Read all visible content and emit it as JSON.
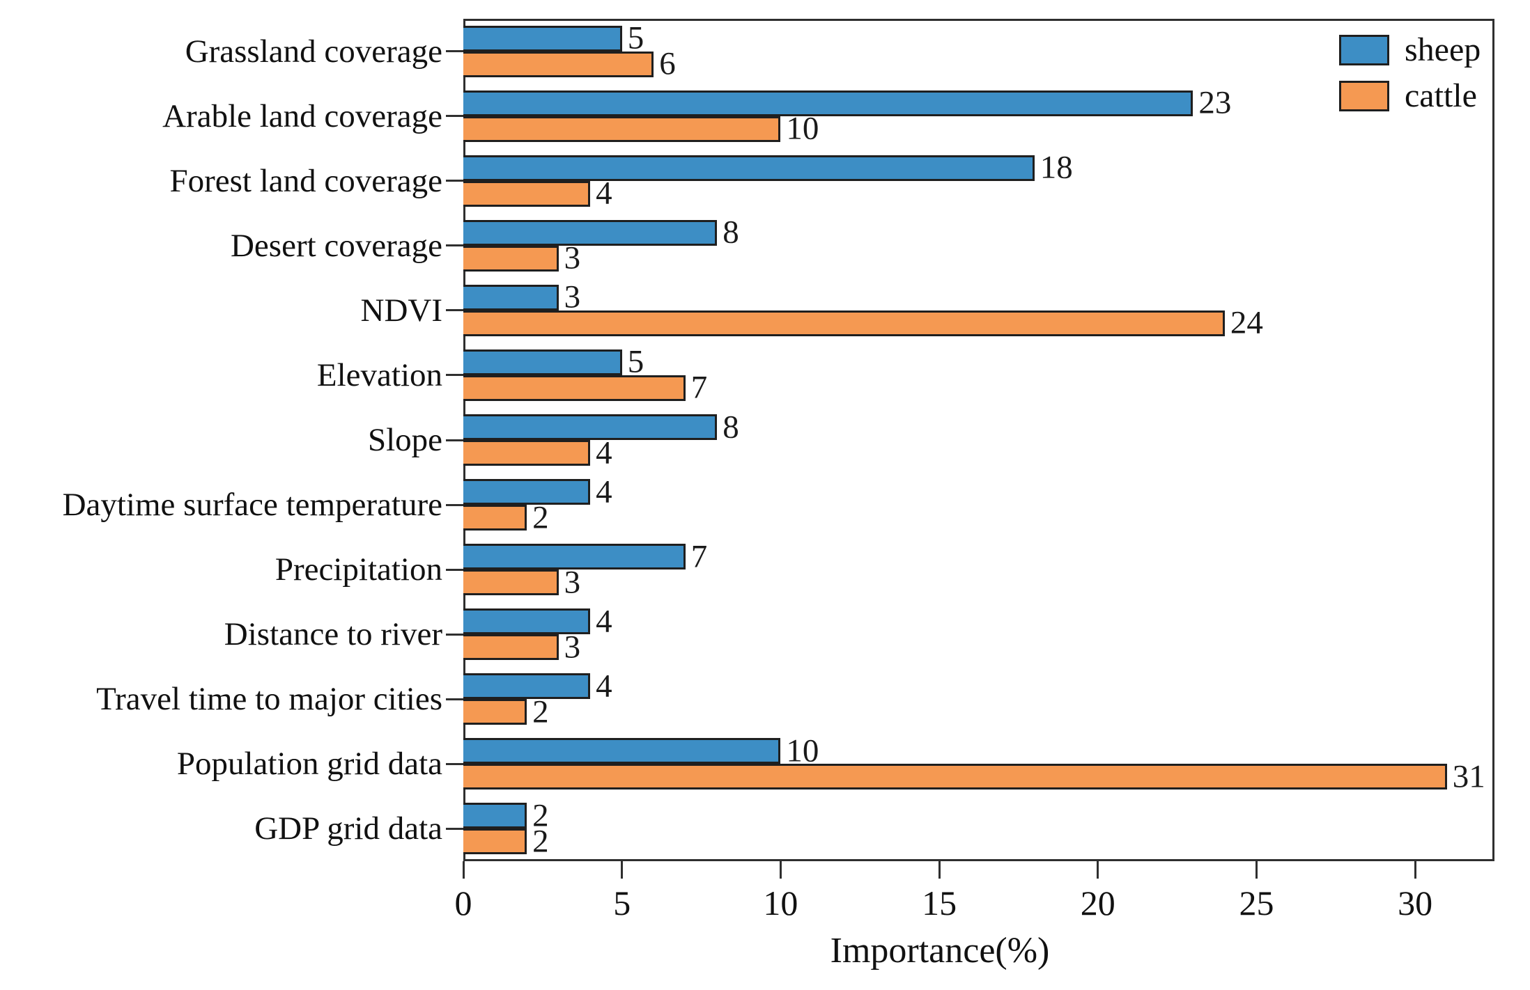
{
  "chart_data": {
    "type": "bar",
    "orientation": "horizontal",
    "title": "",
    "xlabel": "Importance(%)",
    "ylabel": "",
    "xlim": [
      0,
      32.5
    ],
    "xticks": [
      0,
      5,
      10,
      15,
      20,
      25,
      30
    ],
    "grid": false,
    "legend_position": "upper-right-inside",
    "categories": [
      "Grassland coverage",
      "Arable land coverage",
      "Forest land coverage",
      "Desert coverage",
      "NDVI",
      "Elevation",
      "Slope",
      "Daytime surface temperature",
      "Precipitation",
      "Distance to river",
      "Travel time to major cities",
      "Population grid data",
      "GDP grid data"
    ],
    "series": [
      {
        "name": "sheep",
        "color": "#3d8ec5",
        "values": [
          5,
          23,
          18,
          8,
          3,
          5,
          8,
          4,
          7,
          4,
          4,
          10,
          2
        ]
      },
      {
        "name": "cattle",
        "color": "#f59952",
        "values": [
          6,
          10,
          4,
          3,
          24,
          7,
          4,
          2,
          3,
          3,
          2,
          31,
          2
        ]
      }
    ],
    "bar_edge_color": "#1f1f1f",
    "frame_color": "#2f2f2f"
  }
}
